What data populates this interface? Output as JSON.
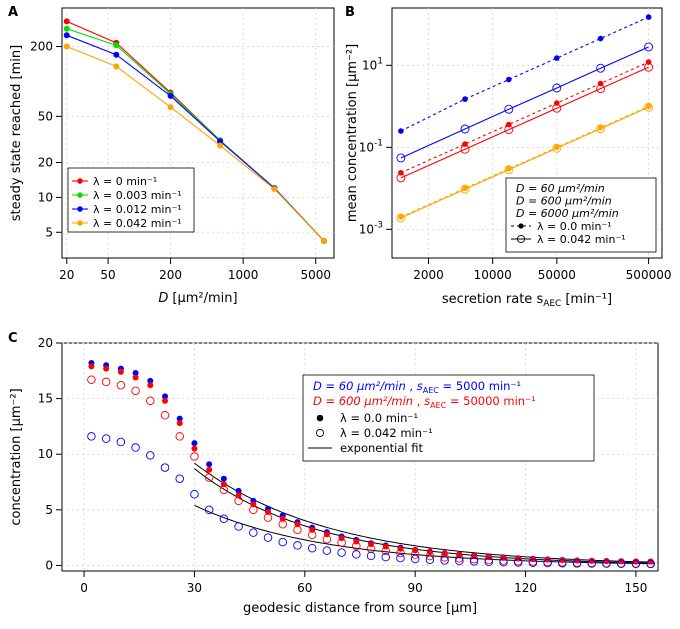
{
  "chart_data": [
    {
      "panel": "A",
      "type": "line",
      "xlabel_prefix": "D",
      "xlabel_unit": "[μm²/min]",
      "ylabel": "steady state reached [min]",
      "xscale": "log",
      "yscale": "log",
      "xlim": [
        18,
        7500
      ],
      "ylim": [
        3,
        430
      ],
      "xticks": [
        20,
        50,
        200,
        1000,
        5000
      ],
      "yticks": [
        5,
        10,
        20,
        50,
        200
      ],
      "x": [
        20,
        60,
        200,
        600,
        2000,
        6000
      ],
      "series": [
        {
          "name": "λ = 0 min⁻¹",
          "color": "#ff0000",
          "values": [
            330,
            215,
            80,
            31,
            12,
            4.2
          ]
        },
        {
          "name": "λ = 0.003 min⁻¹",
          "color": "#00e000",
          "values": [
            285,
            205,
            78,
            31,
            12,
            4.2
          ]
        },
        {
          "name": "λ = 0.012 min⁻¹",
          "color": "#0000ff",
          "values": [
            250,
            170,
            75,
            30.5,
            12,
            4.2
          ]
        },
        {
          "name": "λ = 0.042 min⁻¹",
          "color": "#ffa500",
          "values": [
            200,
            135,
            60,
            28,
            11.8,
            4.2
          ]
        }
      ],
      "legend_position": "bottom-left"
    },
    {
      "panel": "B",
      "type": "line",
      "xlabel_prefix": "secretion rate s",
      "xlabel_sub": "AEC",
      "xlabel_unit": "[min⁻¹]",
      "ylabel": "mean concentration [μm⁻²]",
      "xscale": "log",
      "yscale": "log",
      "xlim": [
        800,
        700000
      ],
      "ylim": [
        0.0002,
        250
      ],
      "xticks": [
        2000,
        10000,
        50000,
        500000
      ],
      "xtick_labels": [
        "2000",
        "10000",
        "50000",
        "500000"
      ],
      "yticks": [
        0.001,
        0.1,
        10
      ],
      "x": [
        1000,
        5000,
        15000,
        50000,
        150000,
        500000
      ],
      "series": [
        {
          "name": "D = 60 μm²/min, λ = 0.0",
          "color": "#0000ff",
          "style": "dashed-filled",
          "values": [
            0.25,
            1.5,
            4.5,
            15,
            45,
            150
          ]
        },
        {
          "name": "D = 60 μm²/min, λ = 0.042",
          "color": "#0000ff",
          "style": "solid-open",
          "values": [
            0.055,
            0.28,
            0.85,
            2.8,
            8.5,
            28
          ]
        },
        {
          "name": "D = 600 μm²/min, λ = 0.0",
          "color": "#ff0000",
          "style": "dashed-filled",
          "values": [
            0.024,
            0.12,
            0.36,
            1.2,
            3.6,
            12
          ]
        },
        {
          "name": "D = 600 μm²/min, λ = 0.042",
          "color": "#ff0000",
          "style": "solid-open",
          "values": [
            0.018,
            0.09,
            0.27,
            0.9,
            2.7,
            9
          ]
        },
        {
          "name": "D = 6000 μm²/min, λ = 0.0",
          "color": "#ffa500",
          "style": "dashed-filled",
          "values": [
            0.002,
            0.01,
            0.03,
            0.1,
            0.3,
            1.0
          ]
        },
        {
          "name": "D = 6000 μm²/min, λ = 0.042",
          "color": "#ffa500",
          "style": "solid-open",
          "values": [
            0.0019,
            0.0095,
            0.0285,
            0.095,
            0.285,
            0.95
          ]
        }
      ],
      "legend": {
        "d_entries": [
          {
            "label": "D = 60 μm²/min",
            "color": "#0000ff"
          },
          {
            "label": "D = 600 μm²/min",
            "color": "#ff0000"
          },
          {
            "label": "D = 6000 μm²/min",
            "color": "#ffa500"
          }
        ],
        "lambda_entries": [
          "λ = 0.0 min⁻¹",
          "λ = 0.042 min⁻¹"
        ],
        "position": "bottom-right"
      }
    },
    {
      "panel": "C",
      "type": "scatter",
      "xlabel": "geodesic distance from source [μm]",
      "ylabel": "concentration [μm⁻²]",
      "xlim": [
        -6,
        156
      ],
      "ylim": [
        -0.5,
        20
      ],
      "xticks": [
        0,
        30,
        60,
        90,
        120,
        150
      ],
      "yticks": [
        0,
        5,
        10,
        15,
        20
      ],
      "x": [
        2,
        6,
        10,
        14,
        18,
        22,
        26,
        30,
        34,
        38,
        42,
        46,
        50,
        54,
        58,
        62,
        66,
        70,
        74,
        78,
        82,
        86,
        90,
        94,
        98,
        102,
        106,
        110,
        114,
        118,
        122,
        126,
        130,
        134,
        138,
        142,
        146,
        150,
        154
      ],
      "series": [
        {
          "name": "D = 60 μm²/min, s_AEC = 5000 min⁻¹, λ = 0.0",
          "color": "#0000ff",
          "marker": "filled",
          "values": [
            18.2,
            18.0,
            17.7,
            17.3,
            16.6,
            15.2,
            13.2,
            11.0,
            9.1,
            7.8,
            6.7,
            5.8,
            5.1,
            4.5,
            3.9,
            3.4,
            3.0,
            2.6,
            2.3,
            2.0,
            1.8,
            1.6,
            1.4,
            1.25,
            1.1,
            1.0,
            0.9,
            0.8,
            0.72,
            0.65,
            0.6,
            0.55,
            0.5,
            0.46,
            0.42,
            0.4,
            0.38,
            0.36,
            0.35
          ]
        },
        {
          "name": "D = 600 μm²/min, s_AEC = 50000 min⁻¹, λ = 0.0",
          "color": "#ff0000",
          "marker": "filled",
          "values": [
            17.9,
            17.7,
            17.4,
            16.9,
            16.2,
            14.8,
            12.8,
            10.5,
            8.6,
            7.3,
            6.3,
            5.5,
            4.8,
            4.2,
            3.7,
            3.2,
            2.8,
            2.45,
            2.15,
            1.9,
            1.7,
            1.5,
            1.35,
            1.2,
            1.05,
            0.95,
            0.85,
            0.75,
            0.68,
            0.62,
            0.57,
            0.52,
            0.48,
            0.44,
            0.41,
            0.39,
            0.37,
            0.35,
            0.34
          ]
        },
        {
          "name": "D = 600 μm²/min, s_AEC = 50000 min⁻¹, λ = 0.042",
          "color": "#ff0000",
          "marker": "open",
          "values": [
            16.7,
            16.5,
            16.2,
            15.7,
            14.8,
            13.5,
            11.6,
            9.8,
            7.9,
            6.8,
            5.8,
            5.0,
            4.3,
            3.7,
            3.2,
            2.75,
            2.35,
            2.05,
            1.75,
            1.5,
            1.3,
            1.12,
            0.97,
            0.84,
            0.73,
            0.64,
            0.56,
            0.49,
            0.43,
            0.38,
            0.34,
            0.3,
            0.27,
            0.24,
            0.22,
            0.2,
            0.18,
            0.17,
            0.16
          ]
        },
        {
          "name": "D = 60 μm²/min, s_AEC = 5000 min⁻¹, λ = 0.042",
          "color": "#0000ff",
          "marker": "open",
          "values": [
            11.6,
            11.4,
            11.1,
            10.6,
            9.9,
            8.8,
            7.8,
            6.4,
            5.0,
            4.2,
            3.5,
            2.95,
            2.5,
            2.1,
            1.8,
            1.55,
            1.33,
            1.15,
            0.99,
            0.86,
            0.75,
            0.66,
            0.58,
            0.51,
            0.45,
            0.4,
            0.36,
            0.32,
            0.29,
            0.26,
            0.24,
            0.22,
            0.2,
            0.18,
            0.17,
            0.16,
            0.15,
            0.14,
            0.13
          ]
        }
      ],
      "fits": [
        {
          "x": [
            30,
            155
          ],
          "y0": 9.2,
          "k": 0.0275
        },
        {
          "x": [
            30,
            155
          ],
          "y0": 8.7,
          "k": 0.0298
        },
        {
          "x": [
            30,
            155
          ],
          "y0": 5.4,
          "k": 0.0285
        }
      ],
      "legend": {
        "line1_d": "D = 60 μm²/min",
        "line1_s": "s",
        "line1_sub": "AEC",
        "line1_val": " = 5000 min⁻¹",
        "line1_color": "#0000ff",
        "line2_d": "D = 600 μm²/min",
        "line2_s": "s",
        "line2_sub": "AEC",
        "line2_val": " = 50000 min⁻¹",
        "line2_color": "#ff0000",
        "line3": "λ = 0.0 min⁻¹",
        "line4": "λ = 0.042 min⁻¹",
        "line5": "exponential fit",
        "position": "top-right"
      }
    }
  ],
  "panel_labels": {
    "a": "A",
    "b": "B",
    "c": "C"
  }
}
